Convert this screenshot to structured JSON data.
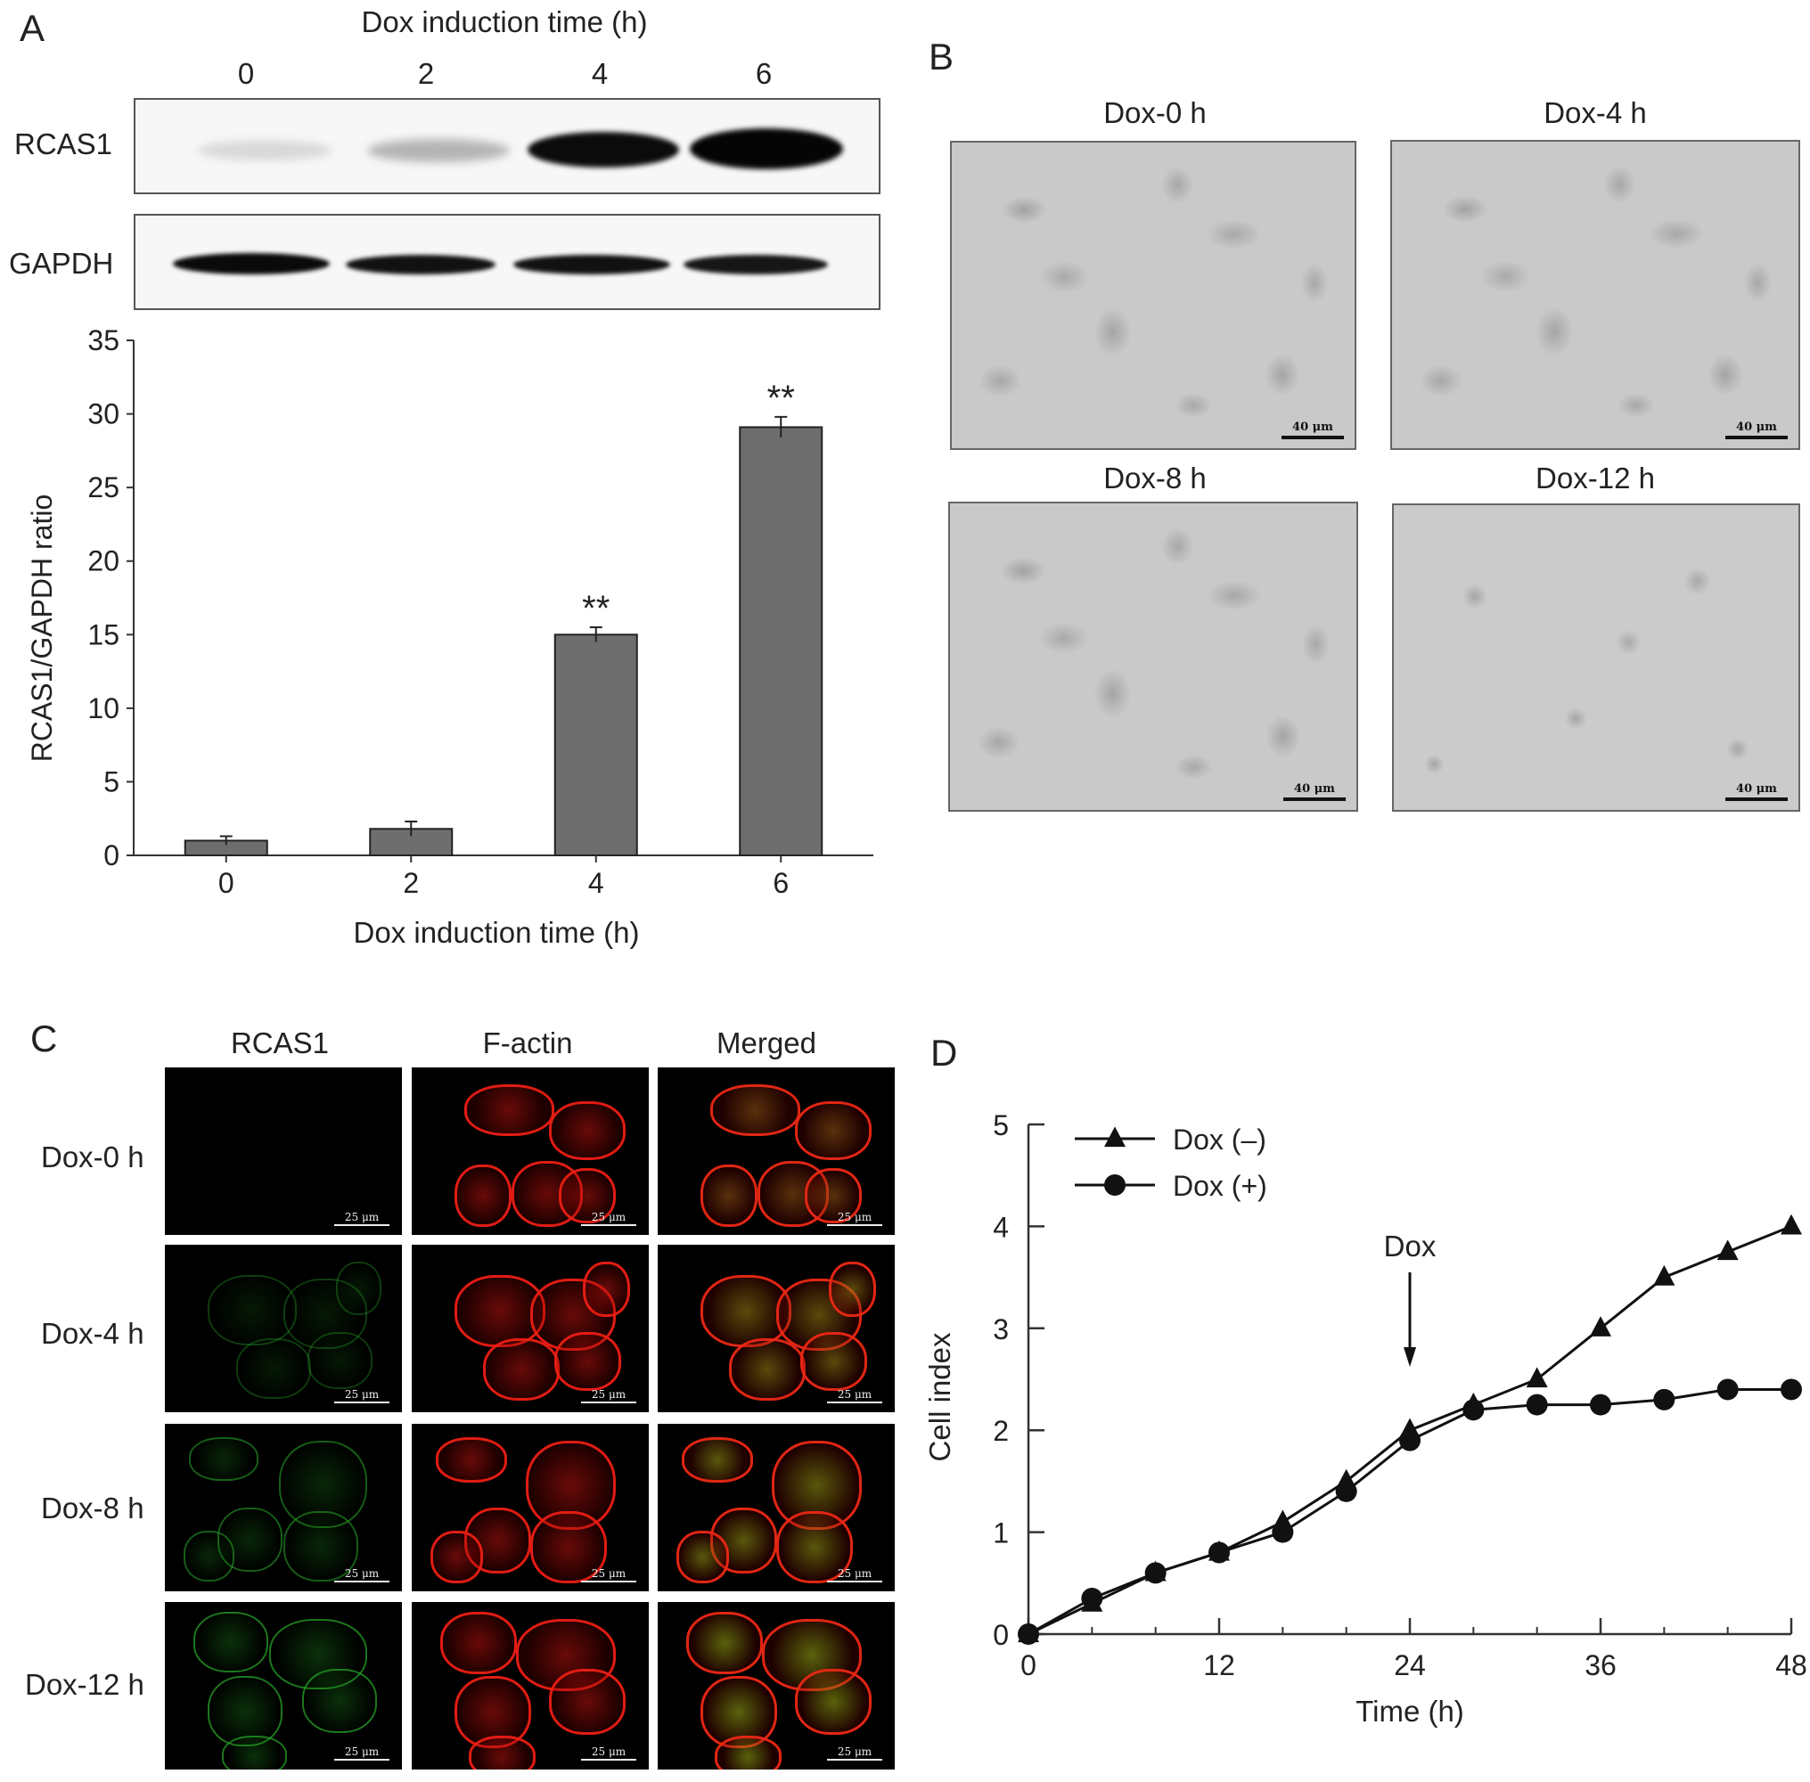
{
  "panelA": {
    "letter": "A",
    "blot_title": "Dox induction time (h)",
    "lanes": [
      "0",
      "2",
      "4",
      "6"
    ],
    "rows": [
      "RCAS1",
      "GAPDH"
    ],
    "band_intensity": {
      "RCAS1": [
        0.15,
        0.3,
        1.0,
        1.0
      ],
      "GAPDH": [
        1.0,
        0.95,
        0.95,
        0.9
      ]
    }
  },
  "panelB": {
    "letter": "B",
    "images": [
      {
        "title": "Dox-0 h",
        "scale": "40 μm"
      },
      {
        "title": "Dox-4 h",
        "scale": "40 μm"
      },
      {
        "title": "Dox-8 h",
        "scale": "40 μm"
      },
      {
        "title": "Dox-12 h",
        "scale": "40 μm"
      }
    ]
  },
  "panelC": {
    "letter": "C",
    "columns": [
      "RCAS1",
      "F-actin",
      "Merged"
    ],
    "rows": [
      "Dox-0 h",
      "Dox-4 h",
      "Dox-8 h",
      "Dox-12 h"
    ],
    "scale": "25 μm"
  },
  "panelD": {
    "letter": "D",
    "annotation": "Dox"
  },
  "chart_data": [
    {
      "type": "bar",
      "categories": [
        "0",
        "2",
        "4",
        "6"
      ],
      "values": [
        1.0,
        1.8,
        15.0,
        29.1
      ],
      "errors": [
        0.3,
        0.5,
        0.5,
        0.7
      ],
      "significance": [
        "",
        "",
        "**",
        "**"
      ],
      "xlabel": "Dox induction time (h)",
      "ylabel": "RCAS1/GAPDH ratio",
      "ylim": [
        0,
        35
      ],
      "yticks": [
        "0",
        "5",
        "10",
        "15",
        "20",
        "25",
        "30",
        "35"
      ],
      "bar_color": "#6e6e6e"
    },
    {
      "type": "line",
      "xlabel": "Time (h)",
      "ylabel": "Cell index",
      "xlim": [
        0,
        48
      ],
      "ylim": [
        0,
        5
      ],
      "xticks": [
        "0",
        "12",
        "24",
        "36",
        "48"
      ],
      "yticks": [
        "0",
        "1",
        "2",
        "3",
        "4",
        "5"
      ],
      "legend_position": "top-left",
      "series": [
        {
          "name": "Dox (–)",
          "marker": "triangle",
          "x": [
            0,
            4,
            8,
            12,
            16,
            20,
            24,
            28,
            32,
            36,
            40,
            44,
            48
          ],
          "y": [
            0,
            0.3,
            0.6,
            0.8,
            1.1,
            1.5,
            2.0,
            2.25,
            2.5,
            3.0,
            3.5,
            3.75,
            4.0
          ]
        },
        {
          "name": "Dox (+)",
          "marker": "circle",
          "x": [
            0,
            4,
            8,
            12,
            16,
            20,
            24,
            28,
            32,
            36,
            40,
            44,
            48
          ],
          "y": [
            0,
            0.35,
            0.6,
            0.8,
            1.0,
            1.4,
            1.9,
            2.2,
            2.25,
            2.25,
            2.3,
            2.4,
            2.4
          ]
        }
      ],
      "annotation_x": 24
    }
  ]
}
